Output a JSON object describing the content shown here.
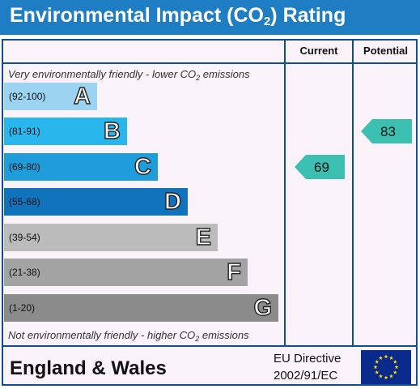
{
  "title": {
    "prefix": "Environmental Impact (CO",
    "sub": "2",
    "suffix": ") Rating"
  },
  "columns": {
    "current": "Current",
    "potential": "Potential"
  },
  "notes": {
    "top_prefix": "Very environmentally friendly - lower CO",
    "top_sub": "2",
    "top_suffix": " emissions",
    "bottom_prefix": "Not environmentally friendly - higher CO",
    "bottom_sub": "2",
    "bottom_suffix": " emissions"
  },
  "bands": [
    {
      "range": "(92-100)",
      "letter": "A",
      "color": "#9cd3f1"
    },
    {
      "range": "(81-91)",
      "letter": "B",
      "color": "#28b6ec"
    },
    {
      "range": "(69-80)",
      "letter": "C",
      "color": "#1f9ddb"
    },
    {
      "range": "(55-68)",
      "letter": "D",
      "color": "#1173bb"
    },
    {
      "range": "(39-54)",
      "letter": "E",
      "color": "#bbbbbb"
    },
    {
      "range": "(21-38)",
      "letter": "F",
      "color": "#a3a3a3"
    },
    {
      "range": "(1-20)",
      "letter": "G",
      "color": "#8b8b8b"
    }
  ],
  "ratings": {
    "current": {
      "value": "69",
      "band": "C"
    },
    "potential": {
      "value": "83",
      "band": "B"
    },
    "arrow_color": "#3bbfb0"
  },
  "footer": {
    "region": "England & Wales",
    "directive_line1": "EU Directive",
    "directive_line2": "2002/91/EC"
  },
  "colors": {
    "title_bar": "#1f7dc3",
    "border": "#0f4d96",
    "panel": "#f9f2f9"
  }
}
